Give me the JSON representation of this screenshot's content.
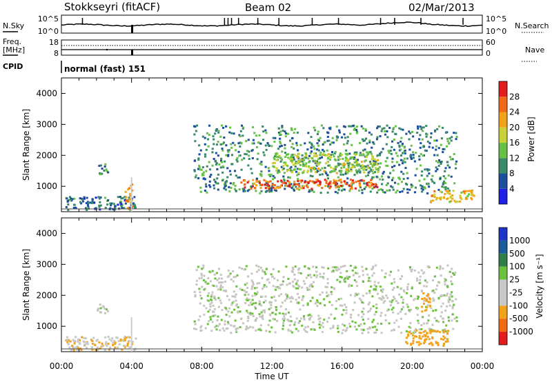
{
  "header": {
    "station": "Stokkseyri (fitACF)",
    "beam": "Beam 02",
    "date": "02/Mar/2013"
  },
  "strips": {
    "nsky_label": "N.Sky",
    "nsky_ticks": [
      "10^5",
      "10^0"
    ],
    "nsearch_label": "N.Search",
    "nsearch_ticks": [
      "10^5",
      "10^0"
    ],
    "freq_label_1": "Freq.",
    "freq_label_2": "[MHz]",
    "freq_ticks": [
      "18",
      "8"
    ],
    "nave_label": "Nave",
    "nave_ticks": [
      "60",
      "0"
    ],
    "cpid_label": "CPID",
    "cpid_value": "normal (fast) 151"
  },
  "colors": {
    "power_scale": [
      "#1f1fe6",
      "#1d4f9f",
      "#3a8a6a",
      "#66c247",
      "#c8d03a",
      "#f2a31a",
      "#f06a18",
      "#e31d1d"
    ],
    "velocity_scale": [
      "#1f35c8",
      "#1c5c9a",
      "#2e7f48",
      "#6bc23d",
      "#c8c8c8",
      "#c8c8c8",
      "#f2a31a",
      "#f26b12",
      "#e31d1d"
    ],
    "velocity_dominant": "#c6c4bc"
  },
  "chart_data": [
    {
      "type": "heatmap",
      "panel": "power",
      "ylabel": "Slant Range [km]",
      "ylim": [
        180,
        4500
      ],
      "yticks": [
        1000,
        2000,
        3000,
        4000
      ],
      "xlim": [
        0,
        24
      ],
      "colorbar_label": "Power [dB]",
      "colorbar_ticks": [
        "4",
        "8",
        "12",
        "16",
        "20",
        "24",
        "28"
      ],
      "colorbar_range": [
        0,
        32
      ],
      "regions": [
        {
          "x": [
            0.2,
            4.2
          ],
          "y": [
            250,
            700
          ],
          "value": 8
        },
        {
          "x": [
            2.0,
            2.6
          ],
          "y": [
            1400,
            1750
          ],
          "value": 10
        },
        {
          "x": [
            3.6,
            4.0
          ],
          "y": [
            300,
            1100
          ],
          "value": 22
        },
        {
          "x": [
            7.5,
            22.5
          ],
          "y": [
            800,
            3000
          ],
          "value": 10
        },
        {
          "x": [
            10.0,
            18.0
          ],
          "y": [
            950,
            1250
          ],
          "value": 26
        },
        {
          "x": [
            12.0,
            18.0
          ],
          "y": [
            1450,
            2100
          ],
          "value": 16
        },
        {
          "x": [
            21.0,
            23.5
          ],
          "y": [
            500,
            900
          ],
          "value": 20
        }
      ]
    },
    {
      "type": "heatmap",
      "panel": "velocity",
      "ylabel": "Slant Range [km]",
      "xlabel": "Time UT",
      "ylim": [
        180,
        4500
      ],
      "yticks": [
        1000,
        2000,
        3000,
        4000
      ],
      "xlim": [
        0,
        24
      ],
      "xticks": [
        "00:00",
        "04:00",
        "08:00",
        "12:00",
        "16:00",
        "20:00",
        "00:00"
      ],
      "colorbar_label": "Velocity [m s⁻¹]",
      "colorbar_ticks": [
        "1000",
        "500",
        "100",
        "25",
        "-25",
        "-100",
        "-500",
        "-1000"
      ],
      "regions": [
        {
          "x": [
            0.2,
            4.2
          ],
          "y": [
            250,
            700
          ],
          "value": -100
        },
        {
          "x": [
            2.0,
            2.6
          ],
          "y": [
            1400,
            1750
          ],
          "value": 0
        },
        {
          "x": [
            7.5,
            22.5
          ],
          "y": [
            800,
            3000
          ],
          "value": 0
        },
        {
          "x": [
            19.5,
            22.0
          ],
          "y": [
            400,
            900
          ],
          "value": -300
        },
        {
          "x": [
            20.5,
            21.0
          ],
          "y": [
            1500,
            2100
          ],
          "value": -200
        }
      ]
    }
  ]
}
